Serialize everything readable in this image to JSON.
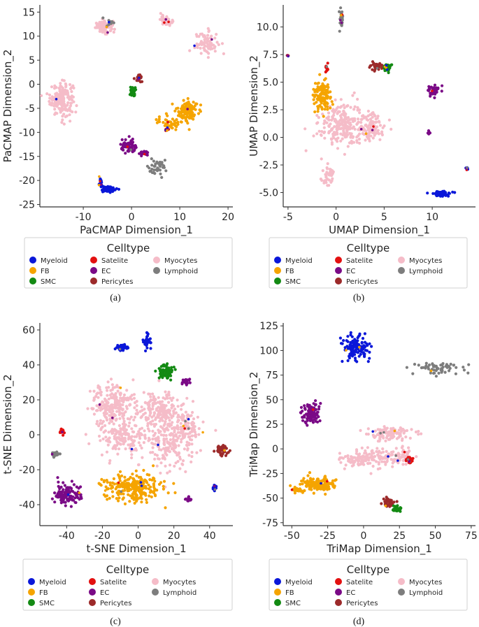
{
  "legend": {
    "title": "Celltype",
    "items": [
      {
        "label": "Myeloid",
        "color": "#0a17d9"
      },
      {
        "label": "FB",
        "color": "#f5a400"
      },
      {
        "label": "SMC",
        "color": "#138a13"
      },
      {
        "label": "Satelite",
        "color": "#e31010"
      },
      {
        "label": "EC",
        "color": "#7a0a86"
      },
      {
        "label": "Pericytes",
        "color": "#9c2a2a"
      },
      {
        "label": "Myocytes",
        "color": "#f5bcc8"
      },
      {
        "label": "Lymphoid",
        "color": "#7d7d7d"
      }
    ]
  },
  "chart_data": [
    {
      "type": "scatter",
      "caption": "(a)",
      "xlabel": "PaCMAP Dimension_1",
      "ylabel": "PaCMAP Dimension_2",
      "xlim": [
        -19,
        21
      ],
      "ylim": [
        -25.5,
        16.5
      ],
      "xticks": [
        -10,
        0,
        10,
        20
      ],
      "yticks": [
        -25,
        -20,
        -15,
        -10,
        -5,
        0,
        5,
        10,
        15
      ],
      "clusters": [
        {
          "type": "Myocytes",
          "x": -14.5,
          "y": -3,
          "sx": 1.6,
          "sy": 2.3,
          "n": 180
        },
        {
          "type": "Myocytes",
          "x": -5.5,
          "y": 11.8,
          "sx": 1.3,
          "sy": 0.8,
          "n": 90
        },
        {
          "type": "Myocytes",
          "x": 7.2,
          "y": 13.3,
          "sx": 0.8,
          "sy": 0.7,
          "n": 50
        },
        {
          "type": "Myocytes",
          "x": 15.5,
          "y": 8.5,
          "sx": 1.6,
          "sy": 1.6,
          "n": 70
        },
        {
          "type": "Lymphoid",
          "x": 5.5,
          "y": -17.5,
          "sx": 1.5,
          "sy": 1.3,
          "n": 35
        },
        {
          "type": "FB",
          "x": 11.5,
          "y": -5.5,
          "sx": 1.4,
          "sy": 1.4,
          "n": 140
        },
        {
          "type": "FB",
          "x": 8,
          "y": -8,
          "sx": 1.8,
          "sy": 0.9,
          "n": 40
        },
        {
          "type": "Myeloid",
          "x": -4.8,
          "y": -21.8,
          "sx": 1.1,
          "sy": 0.45,
          "n": 70
        },
        {
          "type": "Myeloid",
          "x": -6.4,
          "y": -20.5,
          "sx": 0.3,
          "sy": 0.7,
          "n": 20
        },
        {
          "type": "EC",
          "x": -0.5,
          "y": -13,
          "sx": 1.1,
          "sy": 0.9,
          "n": 70
        },
        {
          "type": "EC",
          "x": 2.5,
          "y": -14.5,
          "sx": 0.7,
          "sy": 0.4,
          "n": 20
        },
        {
          "type": "SMC",
          "x": 0.3,
          "y": -1.5,
          "sx": 0.4,
          "sy": 0.7,
          "n": 30
        },
        {
          "type": "Pericytes",
          "x": 1.5,
          "y": 1.3,
          "sx": 0.4,
          "sy": 0.5,
          "n": 30
        },
        {
          "type": "Satelite",
          "x": 7.5,
          "y": -9.5,
          "sx": 0.3,
          "sy": 0.3,
          "n": 8
        },
        {
          "type": "Lymphoid",
          "x": -4.5,
          "y": 13,
          "sx": 0.6,
          "sy": 0.4,
          "n": 10
        }
      ]
    },
    {
      "type": "scatter",
      "caption": "(b)",
      "xlabel": "UMAP Dimension_1",
      "ylabel": "UMAP Dimension_2",
      "xlim": [
        -5.5,
        14.5
      ],
      "ylim": [
        -6.3,
        12
      ],
      "xticks": [
        -5,
        0,
        5,
        10
      ],
      "yticks": [
        -5.0,
        -2.5,
        0.0,
        2.5,
        5.0,
        7.5,
        10.0
      ],
      "clusters": [
        {
          "type": "Myocytes",
          "x": 0.5,
          "y": 1.2,
          "sx": 1.5,
          "sy": 1.4,
          "n": 220
        },
        {
          "type": "Myocytes",
          "x": 3.5,
          "y": 0.9,
          "sx": 1.1,
          "sy": 0.9,
          "n": 110
        },
        {
          "type": "Myocytes",
          "x": -0.8,
          "y": -3.5,
          "sx": 0.5,
          "sy": 0.6,
          "n": 40
        },
        {
          "type": "FB",
          "x": -1.5,
          "y": 3.8,
          "sx": 0.6,
          "sy": 0.8,
          "n": 130
        },
        {
          "type": "Lymphoid",
          "x": 0.5,
          "y": 10.8,
          "sx": 0.15,
          "sy": 0.5,
          "n": 25
        },
        {
          "type": "Pericytes",
          "x": 4.2,
          "y": 6.4,
          "sx": 0.4,
          "sy": 0.25,
          "n": 40
        },
        {
          "type": "SMC",
          "x": 5.3,
          "y": 6.3,
          "sx": 0.3,
          "sy": 0.2,
          "n": 40
        },
        {
          "type": "EC",
          "x": 10.2,
          "y": 4.2,
          "sx": 0.4,
          "sy": 0.3,
          "n": 55
        },
        {
          "type": "Myeloid",
          "x": 10.8,
          "y": -5.1,
          "sx": 0.7,
          "sy": 0.15,
          "n": 55
        },
        {
          "type": "Myeloid",
          "x": 13.6,
          "y": -2.8,
          "sx": 0.1,
          "sy": 0.1,
          "n": 8
        },
        {
          "type": "Satelite",
          "x": -1,
          "y": 6.3,
          "sx": 0.1,
          "sy": 0.25,
          "n": 10
        },
        {
          "type": "EC",
          "x": 9.6,
          "y": 0.4,
          "sx": 0.1,
          "sy": 0.15,
          "n": 8
        },
        {
          "type": "Pericytes",
          "x": -5,
          "y": 7.4,
          "sx": 0.05,
          "sy": 0.05,
          "n": 3
        }
      ]
    },
    {
      "type": "scatter",
      "caption": "(c)",
      "xlabel": "t-SNE Dimension_1",
      "ylabel": "t-SNE Dimension_2",
      "xlim": [
        -55,
        53
      ],
      "ylim": [
        -52,
        64
      ],
      "xticks": [
        -40,
        -20,
        0,
        20,
        40
      ],
      "yticks": [
        -40,
        -20,
        0,
        20,
        40,
        60
      ],
      "clusters": [
        {
          "type": "Myocytes",
          "x": -14,
          "y": 18,
          "sx": 8,
          "sy": 7,
          "n": 200
        },
        {
          "type": "Myocytes",
          "x": 12,
          "y": 14,
          "sx": 8,
          "sy": 7,
          "n": 170
        },
        {
          "type": "Myocytes",
          "x": -10,
          "y": 0,
          "sx": 9,
          "sy": 8,
          "n": 180
        },
        {
          "type": "Myocytes",
          "x": 16,
          "y": -4,
          "sx": 9,
          "sy": 10,
          "n": 200
        },
        {
          "type": "Myocytes",
          "x": 28,
          "y": 5,
          "sx": 5,
          "sy": 8,
          "n": 80
        },
        {
          "type": "FB",
          "x": -3,
          "y": -30,
          "sx": 11,
          "sy": 5,
          "n": 240
        },
        {
          "type": "EC",
          "x": -40,
          "y": -34,
          "sx": 5,
          "sy": 4,
          "n": 120
        },
        {
          "type": "Myeloid",
          "x": -9,
          "y": 50,
          "sx": 2.2,
          "sy": 1.5,
          "n": 35
        },
        {
          "type": "Myeloid",
          "x": 5,
          "y": 54,
          "sx": 1.5,
          "sy": 3,
          "n": 30
        },
        {
          "type": "Myeloid",
          "x": 43,
          "y": -30,
          "sx": 1,
          "sy": 1.3,
          "n": 12
        },
        {
          "type": "SMC",
          "x": 16,
          "y": 36,
          "sx": 2.8,
          "sy": 3,
          "n": 80
        },
        {
          "type": "Pericytes",
          "x": 47,
          "y": -9,
          "sx": 2.2,
          "sy": 2,
          "n": 55
        },
        {
          "type": "Lymphoid",
          "x": -46,
          "y": -11,
          "sx": 1.6,
          "sy": 0.9,
          "n": 25
        },
        {
          "type": "Satelite",
          "x": -43,
          "y": 2,
          "sx": 0.8,
          "sy": 1.3,
          "n": 20
        },
        {
          "type": "EC",
          "x": 27,
          "y": 30,
          "sx": 1.3,
          "sy": 1.3,
          "n": 20
        },
        {
          "type": "EC",
          "x": 28,
          "y": -37,
          "sx": 1,
          "sy": 1,
          "n": 12
        }
      ]
    },
    {
      "type": "scatter",
      "caption": "(d)",
      "xlabel": "TriMap Dimension_1",
      "ylabel": "TriMap Dimension_2",
      "xlim": [
        -56,
        78
      ],
      "ylim": [
        -78,
        128
      ],
      "xticks": [
        -50,
        -25,
        0,
        25,
        50,
        75
      ],
      "yticks": [
        -75,
        -50,
        -25,
        0,
        25,
        50,
        75,
        100,
        125
      ],
      "clusters": [
        {
          "type": "Myeloid",
          "x": -5,
          "y": 102,
          "sx": 6,
          "sy": 9,
          "n": 120
        },
        {
          "type": "Lymphoid",
          "x": 52,
          "y": 82,
          "sx": 12,
          "sy": 4,
          "n": 60
        },
        {
          "type": "EC",
          "x": -37,
          "y": 35,
          "sx": 4,
          "sy": 7,
          "n": 100
        },
        {
          "type": "Myocytes",
          "x": 17,
          "y": 15,
          "sx": 11,
          "sy": 5,
          "n": 100
        },
        {
          "type": "Myocytes",
          "x": 4,
          "y": -10,
          "sx": 14,
          "sy": 6,
          "n": 140
        },
        {
          "type": "Myocytes",
          "x": 24,
          "y": -6,
          "sx": 8,
          "sy": 6,
          "n": 50
        },
        {
          "type": "FB",
          "x": -32,
          "y": -36,
          "sx": 8,
          "sy": 5,
          "n": 150
        },
        {
          "type": "Pericytes",
          "x": 17,
          "y": -55,
          "sx": 3,
          "sy": 3,
          "n": 40
        },
        {
          "type": "SMC",
          "x": 23,
          "y": -61,
          "sx": 2.5,
          "sy": 2,
          "n": 40
        },
        {
          "type": "Satelite",
          "x": 32,
          "y": -12,
          "sx": 1.5,
          "sy": 2.5,
          "n": 25
        },
        {
          "type": "FB",
          "x": -46,
          "y": -42,
          "sx": 3,
          "sy": 2,
          "n": 30
        }
      ]
    }
  ]
}
